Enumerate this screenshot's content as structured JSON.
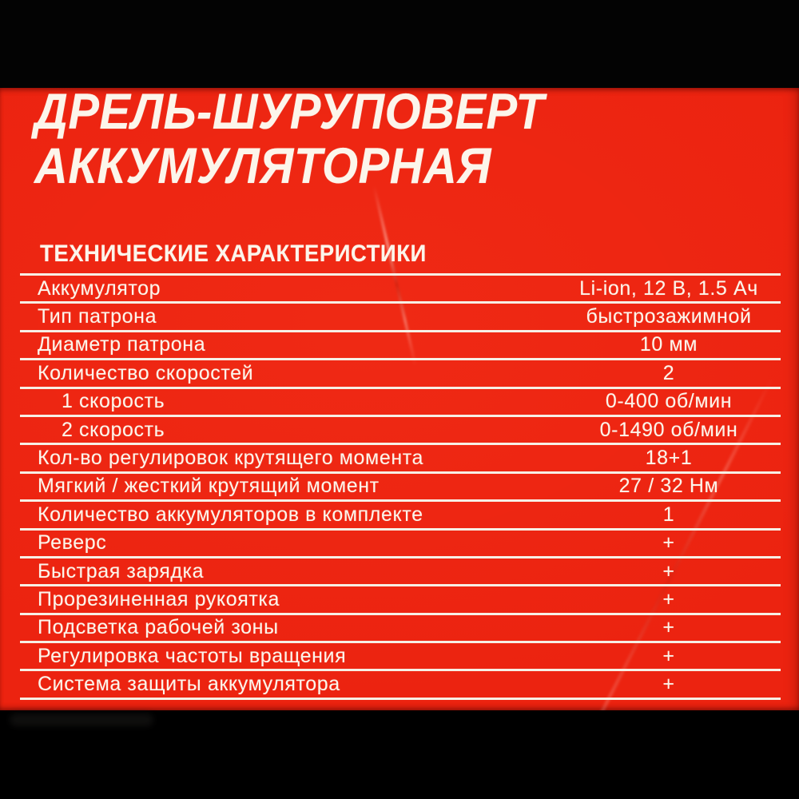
{
  "colors": {
    "red": "#ec2310",
    "text_white": "#fcf5eb",
    "line_white": "#f7efe5",
    "bar_black": "#030303"
  },
  "header": {
    "title_lines": [
      "ДРЕЛЬ-ШУРУПОВЕРТ",
      "АККУМУЛЯТОРНАЯ"
    ]
  },
  "specs": {
    "heading": "ТЕХНИЧЕСКИЕ ХАРАКТЕРИСТИКИ",
    "rows": [
      {
        "label": "Аккумулятор",
        "value": "Li-ion, 12 В, 1.5 Ач",
        "indent": false
      },
      {
        "label": "Тип патрона",
        "value": "быстрозажимной",
        "indent": false
      },
      {
        "label": "Диаметр патрона",
        "value": "10 мм",
        "indent": false
      },
      {
        "label": "Количество скоростей",
        "value": "2",
        "indent": false
      },
      {
        "label": "1 скорость",
        "value": "0-400 об/мин",
        "indent": true
      },
      {
        "label": "2 скорость",
        "value": "0-1490 об/мин",
        "indent": true
      },
      {
        "label": "Кол-во регулировок крутящего момента",
        "value": "18+1",
        "indent": false
      },
      {
        "label": "Мягкий / жесткий крутящий момент",
        "value": "27 / 32 Нм",
        "indent": false
      },
      {
        "label": "Количество аккумуляторов в комплекте",
        "value": "1",
        "indent": false
      },
      {
        "label": "Реверс",
        "value": "+",
        "indent": false
      },
      {
        "label": "Быстрая зарядка",
        "value": "+",
        "indent": false
      },
      {
        "label": "Прорезиненная рукоятка",
        "value": "+",
        "indent": false
      },
      {
        "label": "Подсветка рабочей зоны",
        "value": "+",
        "indent": false
      },
      {
        "label": "Регулировка частоты вращения",
        "value": "+",
        "indent": false
      },
      {
        "label": "Система защиты аккумулятора",
        "value": "+",
        "indent": false
      }
    ]
  }
}
